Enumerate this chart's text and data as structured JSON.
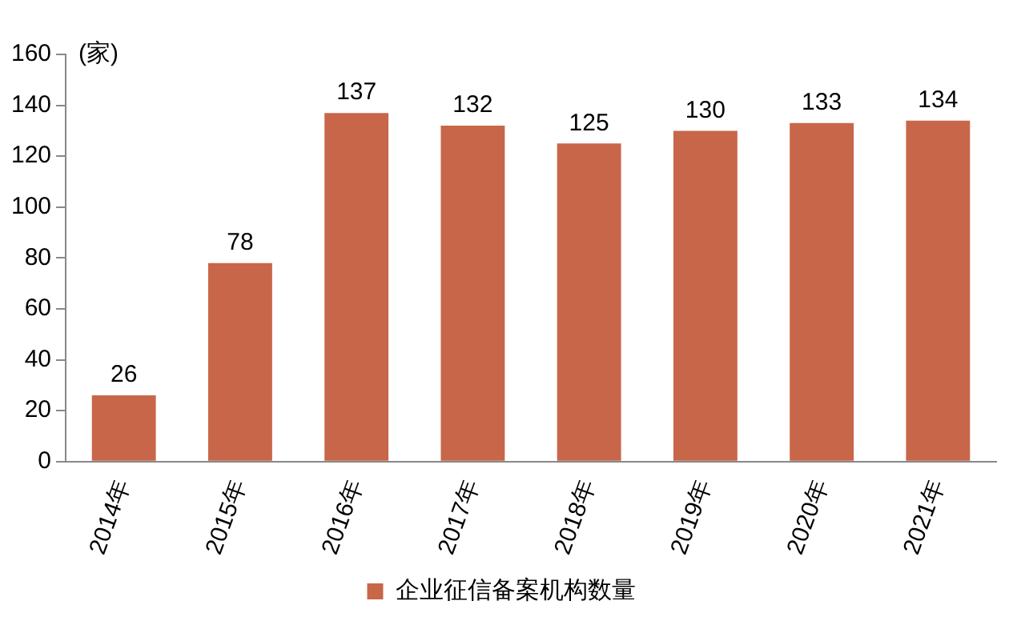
{
  "chart_data": {
    "type": "bar",
    "ylabel": "(家)",
    "categories": [
      "2014年",
      "2015年",
      "2016年",
      "2017年",
      "2018年",
      "2019年",
      "2020年",
      "2021年"
    ],
    "series": [
      {
        "name": "企业征信备案机构数量",
        "color": "#c8664a",
        "values": [
          26,
          78,
          137,
          132,
          125,
          130,
          133,
          134
        ]
      }
    ],
    "ylim": [
      0,
      160
    ],
    "yticks": [
      0,
      20,
      40,
      60,
      80,
      100,
      120,
      140,
      160
    ],
    "grid": false,
    "legend": "bottom",
    "data_labels": true
  }
}
